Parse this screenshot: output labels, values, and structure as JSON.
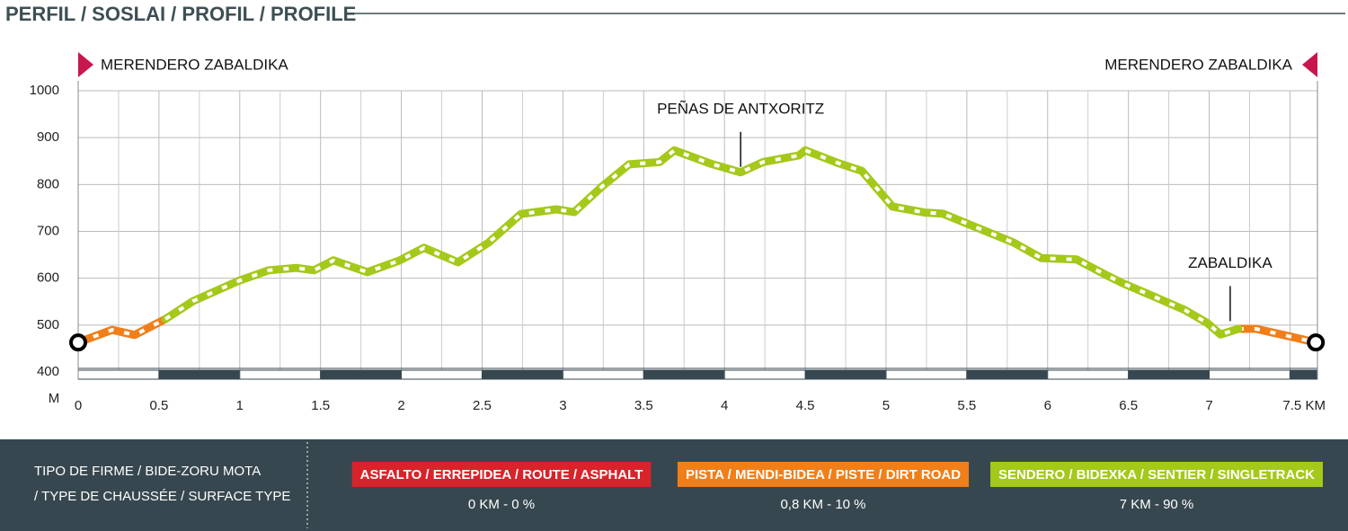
{
  "title": "PERFIL / SOSLAI / PROFIL / PROFILE",
  "chart_data": {
    "type": "line",
    "start_label": "MERENDERO ZABALDIKA",
    "end_label": "MERENDERO ZABALDIKA",
    "y_label": "M",
    "xlim": [
      0,
      7.67
    ],
    "ylim": [
      400,
      1000
    ],
    "yticks": [
      400,
      500,
      600,
      700,
      800,
      900,
      1000
    ],
    "xticks": [
      0,
      0.5,
      1,
      1.5,
      2,
      2.5,
      3,
      3.5,
      4,
      4.5,
      5,
      5.5,
      6,
      6.5,
      7,
      {
        "value": 7.5,
        "label": "7.5 KM"
      }
    ],
    "grid": true,
    "x": [
      0,
      0.21,
      0.35,
      0.54,
      0.71,
      0.99,
      1.18,
      1.35,
      1.46,
      1.58,
      1.79,
      1.99,
      2.14,
      2.35,
      2.54,
      2.74,
      2.96,
      3.07,
      3.24,
      3.41,
      3.6,
      3.69,
      3.91,
      4.1,
      4.24,
      4.46,
      4.5,
      4.71,
      4.85,
      5.04,
      5.24,
      5.35,
      5.52,
      5.79,
      5.96,
      6.18,
      6.35,
      6.46,
      6.63,
      6.85,
      6.99,
      7.07,
      7.18,
      7.29,
      7.46,
      7.66
    ],
    "series": [
      {
        "name": "ASFALTO / ERREPIDEA / ROUTE / ASPHALT",
        "color": "#d9232b",
        "stats": "0 KM - 0 %",
        "values": [
          null,
          null,
          null,
          null,
          null,
          null,
          null,
          null,
          null,
          null,
          null,
          null,
          null,
          null,
          null,
          null,
          null,
          null,
          null,
          null,
          null,
          null,
          null,
          null,
          null,
          null,
          null,
          null,
          null,
          null,
          null,
          null,
          null,
          null,
          null,
          null,
          null,
          null,
          null,
          null,
          null,
          null,
          null,
          null,
          null,
          null
        ]
      },
      {
        "name": "PISTA / MENDI-BIDEA / PISTE / DIRT ROAD",
        "color": "#f07f1a",
        "stats": "0,8 KM - 10 %",
        "values": [
          463,
          490,
          479,
          513,
          null,
          null,
          null,
          null,
          null,
          null,
          null,
          null,
          null,
          null,
          null,
          null,
          null,
          null,
          null,
          null,
          null,
          null,
          null,
          null,
          null,
          null,
          null,
          null,
          null,
          null,
          null,
          null,
          null,
          null,
          null,
          null,
          null,
          null,
          null,
          null,
          null,
          null,
          492,
          492,
          479,
          463
        ]
      },
      {
        "name": "SENDERO  / BIDEXKA / SENTIER / SINGLETRACK",
        "color": "#a4c91a",
        "stats": "7 KM - 90 %",
        "values": [
          null,
          null,
          null,
          513,
          551,
          594,
          617,
          622,
          617,
          638,
          613,
          638,
          665,
          634,
          676,
          737,
          747,
          741,
          795,
          843,
          848,
          873,
          845,
          826,
          848,
          862,
          873,
          845,
          829,
          753,
          740,
          738,
          714,
          676,
          643,
          640,
          609,
          590,
          565,
          532,
          504,
          480,
          492,
          null,
          null,
          null
        ]
      }
    ],
    "annotations": [
      {
        "text": "PEÑAS DE ANTXORITZ",
        "x": 4.1,
        "y": 826
      },
      {
        "text": "ZABALDIKA",
        "x": 7.13,
        "y": 497
      }
    ]
  },
  "legend_title": [
    "TIPO DE FIRME / BIDE-ZORU MOTA",
    "/ TYPE DE CHAUSSÉE / SURFACE TYPE"
  ]
}
